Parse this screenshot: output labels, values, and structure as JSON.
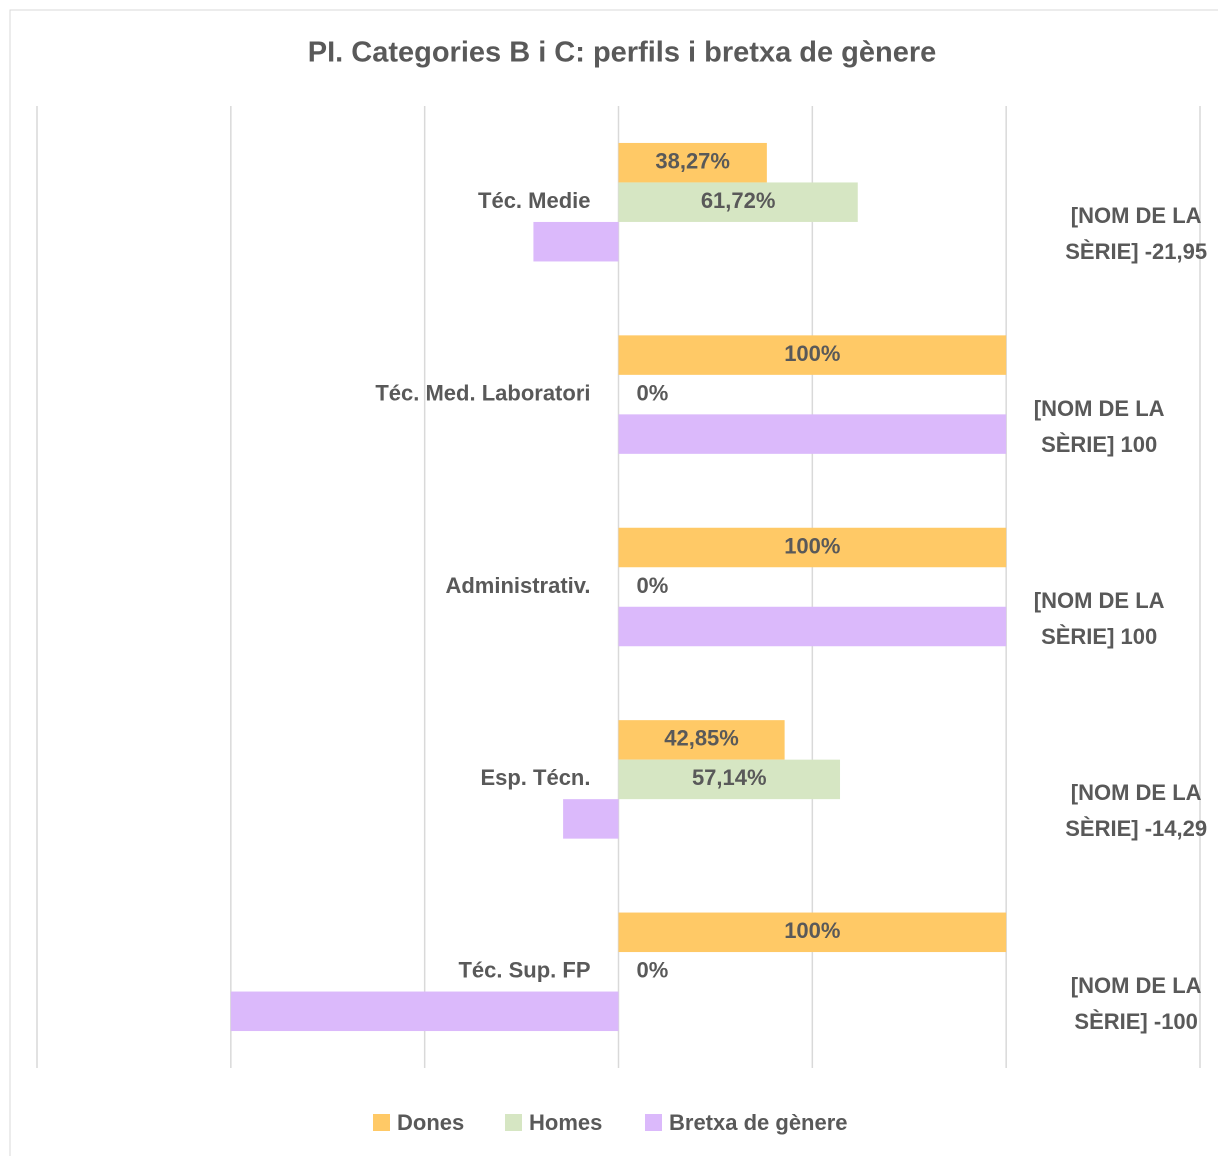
{
  "chart_data": {
    "type": "hbar",
    "title": "PI. Categories B i C: perfils i bretxa de gènere",
    "categories": [
      "Téc. Medie",
      "Téc. Med. Laboratori",
      "Administrativ.",
      "Esp. Técn.",
      "Téc. Sup. FP"
    ],
    "series": [
      {
        "name": "Dones",
        "color": "#ffc966",
        "values": [
          38.27,
          100,
          100,
          42.85,
          100
        ],
        "value_labels": [
          "38,27%",
          "100%",
          "100%",
          "42,85%",
          "100%"
        ]
      },
      {
        "name": "Homes",
        "color": "#d6e6c3",
        "values": [
          61.72,
          0,
          0,
          57.14,
          0
        ],
        "value_labels": [
          "61,72%",
          "0%",
          "0%",
          "57,14%",
          "0%"
        ]
      },
      {
        "name": "Bretxa de gènere",
        "color": "#dbb9fb",
        "values": [
          -21.95,
          100,
          100,
          -14.29,
          -100
        ],
        "value_labels": [
          "[NOM DE LA SÈRIE] -21,95",
          "[NOM DE LA SÈRIE] 100",
          "[NOM DE LA SÈRIE] 100",
          "[NOM DE LA SÈRIE] -14,29",
          "[NOM DE LA SÈRIE] -100"
        ]
      }
    ],
    "xlim": [
      -150,
      150
    ],
    "xticks": [
      -150,
      -100,
      -50,
      0,
      50,
      100,
      150
    ],
    "grid": true,
    "legend": "bottom"
  }
}
